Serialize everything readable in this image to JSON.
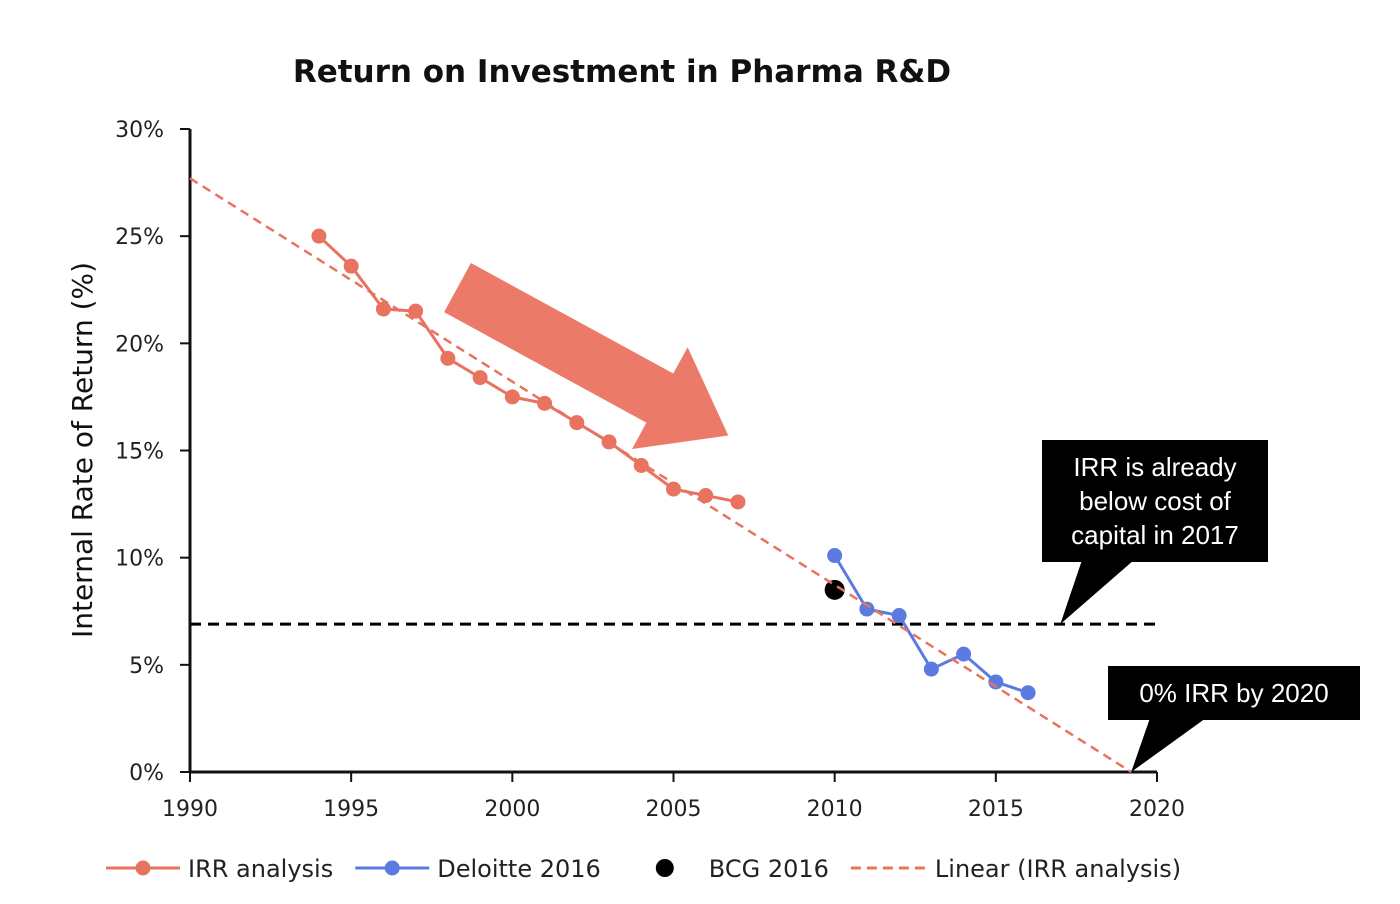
{
  "chart_data": {
    "type": "line",
    "title": "Return on Investment in Pharma R&D",
    "xlabel": "",
    "ylabel": "Internal Rate of Return (%)",
    "xlim": [
      1990,
      2020
    ],
    "ylim": [
      0,
      30
    ],
    "x_ticks": [
      "1990",
      "1995",
      "2000",
      "2005",
      "2010",
      "2015",
      "2020"
    ],
    "y_ticks": [
      "0%",
      "5%",
      "10%",
      "15%",
      "20%",
      "25%",
      "30%"
    ],
    "grid": false,
    "legend_position": "bottom",
    "series": [
      {
        "name": "IRR analysis",
        "color": "#e8735f",
        "style": "line-marker",
        "points": [
          [
            1994,
            25.0
          ],
          [
            1995,
            23.6
          ],
          [
            1996,
            21.6
          ],
          [
            1997,
            21.5
          ],
          [
            1998,
            19.3
          ],
          [
            1999,
            18.4
          ],
          [
            2000,
            17.5
          ],
          [
            2001,
            17.2
          ],
          [
            2002,
            16.3
          ],
          [
            2003,
            15.4
          ],
          [
            2004,
            14.3
          ],
          [
            2005,
            13.2
          ],
          [
            2006,
            12.9
          ],
          [
            2007,
            12.6
          ]
        ]
      },
      {
        "name": "Deloitte 2016",
        "color": "#5b7be0",
        "style": "line-marker",
        "points": [
          [
            2010,
            10.1
          ],
          [
            2011,
            7.6
          ],
          [
            2012,
            7.3
          ],
          [
            2013,
            4.8
          ],
          [
            2014,
            5.5
          ],
          [
            2015,
            4.2
          ],
          [
            2016,
            3.7
          ]
        ]
      },
      {
        "name": "BCG 2016",
        "color": "#000000",
        "style": "marker",
        "points": [
          [
            2010,
            8.5
          ]
        ]
      },
      {
        "name": "Linear (IRR analysis)",
        "color": "#e8735f",
        "style": "dashed",
        "points": [
          [
            1990,
            27.7
          ],
          [
            2019.2,
            0.0
          ]
        ]
      }
    ],
    "reference_line": {
      "y": 6.9,
      "color": "#000000",
      "style": "dashed",
      "x_end": 2020
    },
    "trend_arrow_color": "#ec7a68",
    "annotations": [
      {
        "lines": [
          "IRR is already",
          "below cost of",
          "capital in 2017"
        ],
        "points_to": [
          2017,
          6.9
        ]
      },
      {
        "lines": [
          "0% IRR by 2020"
        ],
        "points_to": [
          2019.2,
          0
        ]
      }
    ]
  }
}
